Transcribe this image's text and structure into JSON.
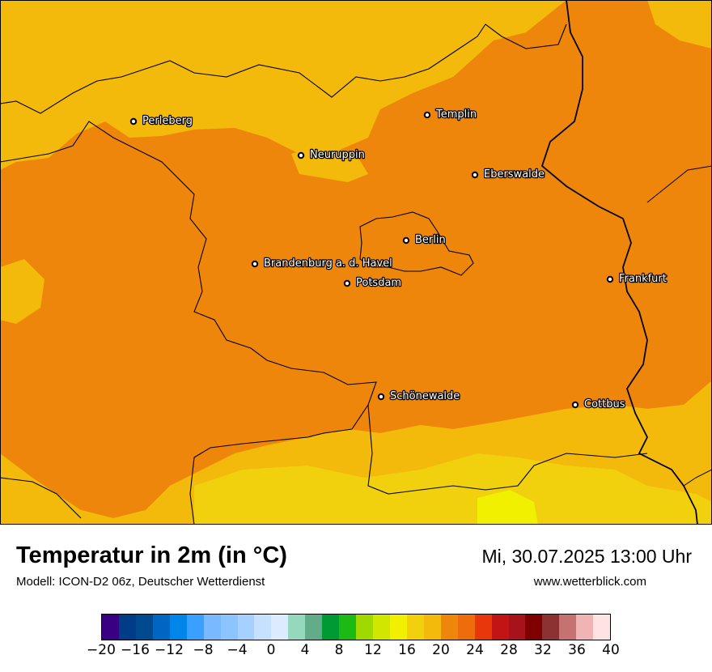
{
  "title": "Temperatur in 2m (in °C)",
  "model": "Modell: ICON-D2 06z, Deutscher Wetterdienst",
  "datetime": "Mi, 30.07.2025 13:00 Uhr",
  "website": "www.wetterblick.com",
  "cities": [
    {
      "name": "Perleberg"
    },
    {
      "name": "Templin"
    },
    {
      "name": "Neuruppin"
    },
    {
      "name": "Eberswalde"
    },
    {
      "name": "Berlin"
    },
    {
      "name": "Brandenburg a. d. Havel"
    },
    {
      "name": "Potsdam"
    },
    {
      "name": "Frankfurt"
    },
    {
      "name": "Schönewalde"
    },
    {
      "name": "Cottbus"
    }
  ],
  "legend": {
    "colors": [
      "#3a0083",
      "#003c88",
      "#004b8f",
      "#0066c4",
      "#0085e8",
      "#3aa0ff",
      "#79b9ff",
      "#8cc4ff",
      "#a6d0ff",
      "#c6e0ff",
      "#dcebff",
      "#94d9bb",
      "#62ac8a",
      "#009a34",
      "#1cbb14",
      "#9fd900",
      "#d1e700",
      "#f0f000",
      "#f1d10d",
      "#f3ba0b",
      "#ef860c",
      "#ef6c0c",
      "#e8380b",
      "#c01514",
      "#a8121a",
      "#7e0000",
      "#8c3232",
      "#c67272",
      "#f1b4b4",
      "#ffe2e2"
    ],
    "ticks": [
      "−20",
      "−16",
      "−12",
      "−8",
      "−4",
      "0",
      "4",
      "8",
      "12",
      "16",
      "20",
      "24",
      "28",
      "32",
      "36",
      "40"
    ]
  }
}
